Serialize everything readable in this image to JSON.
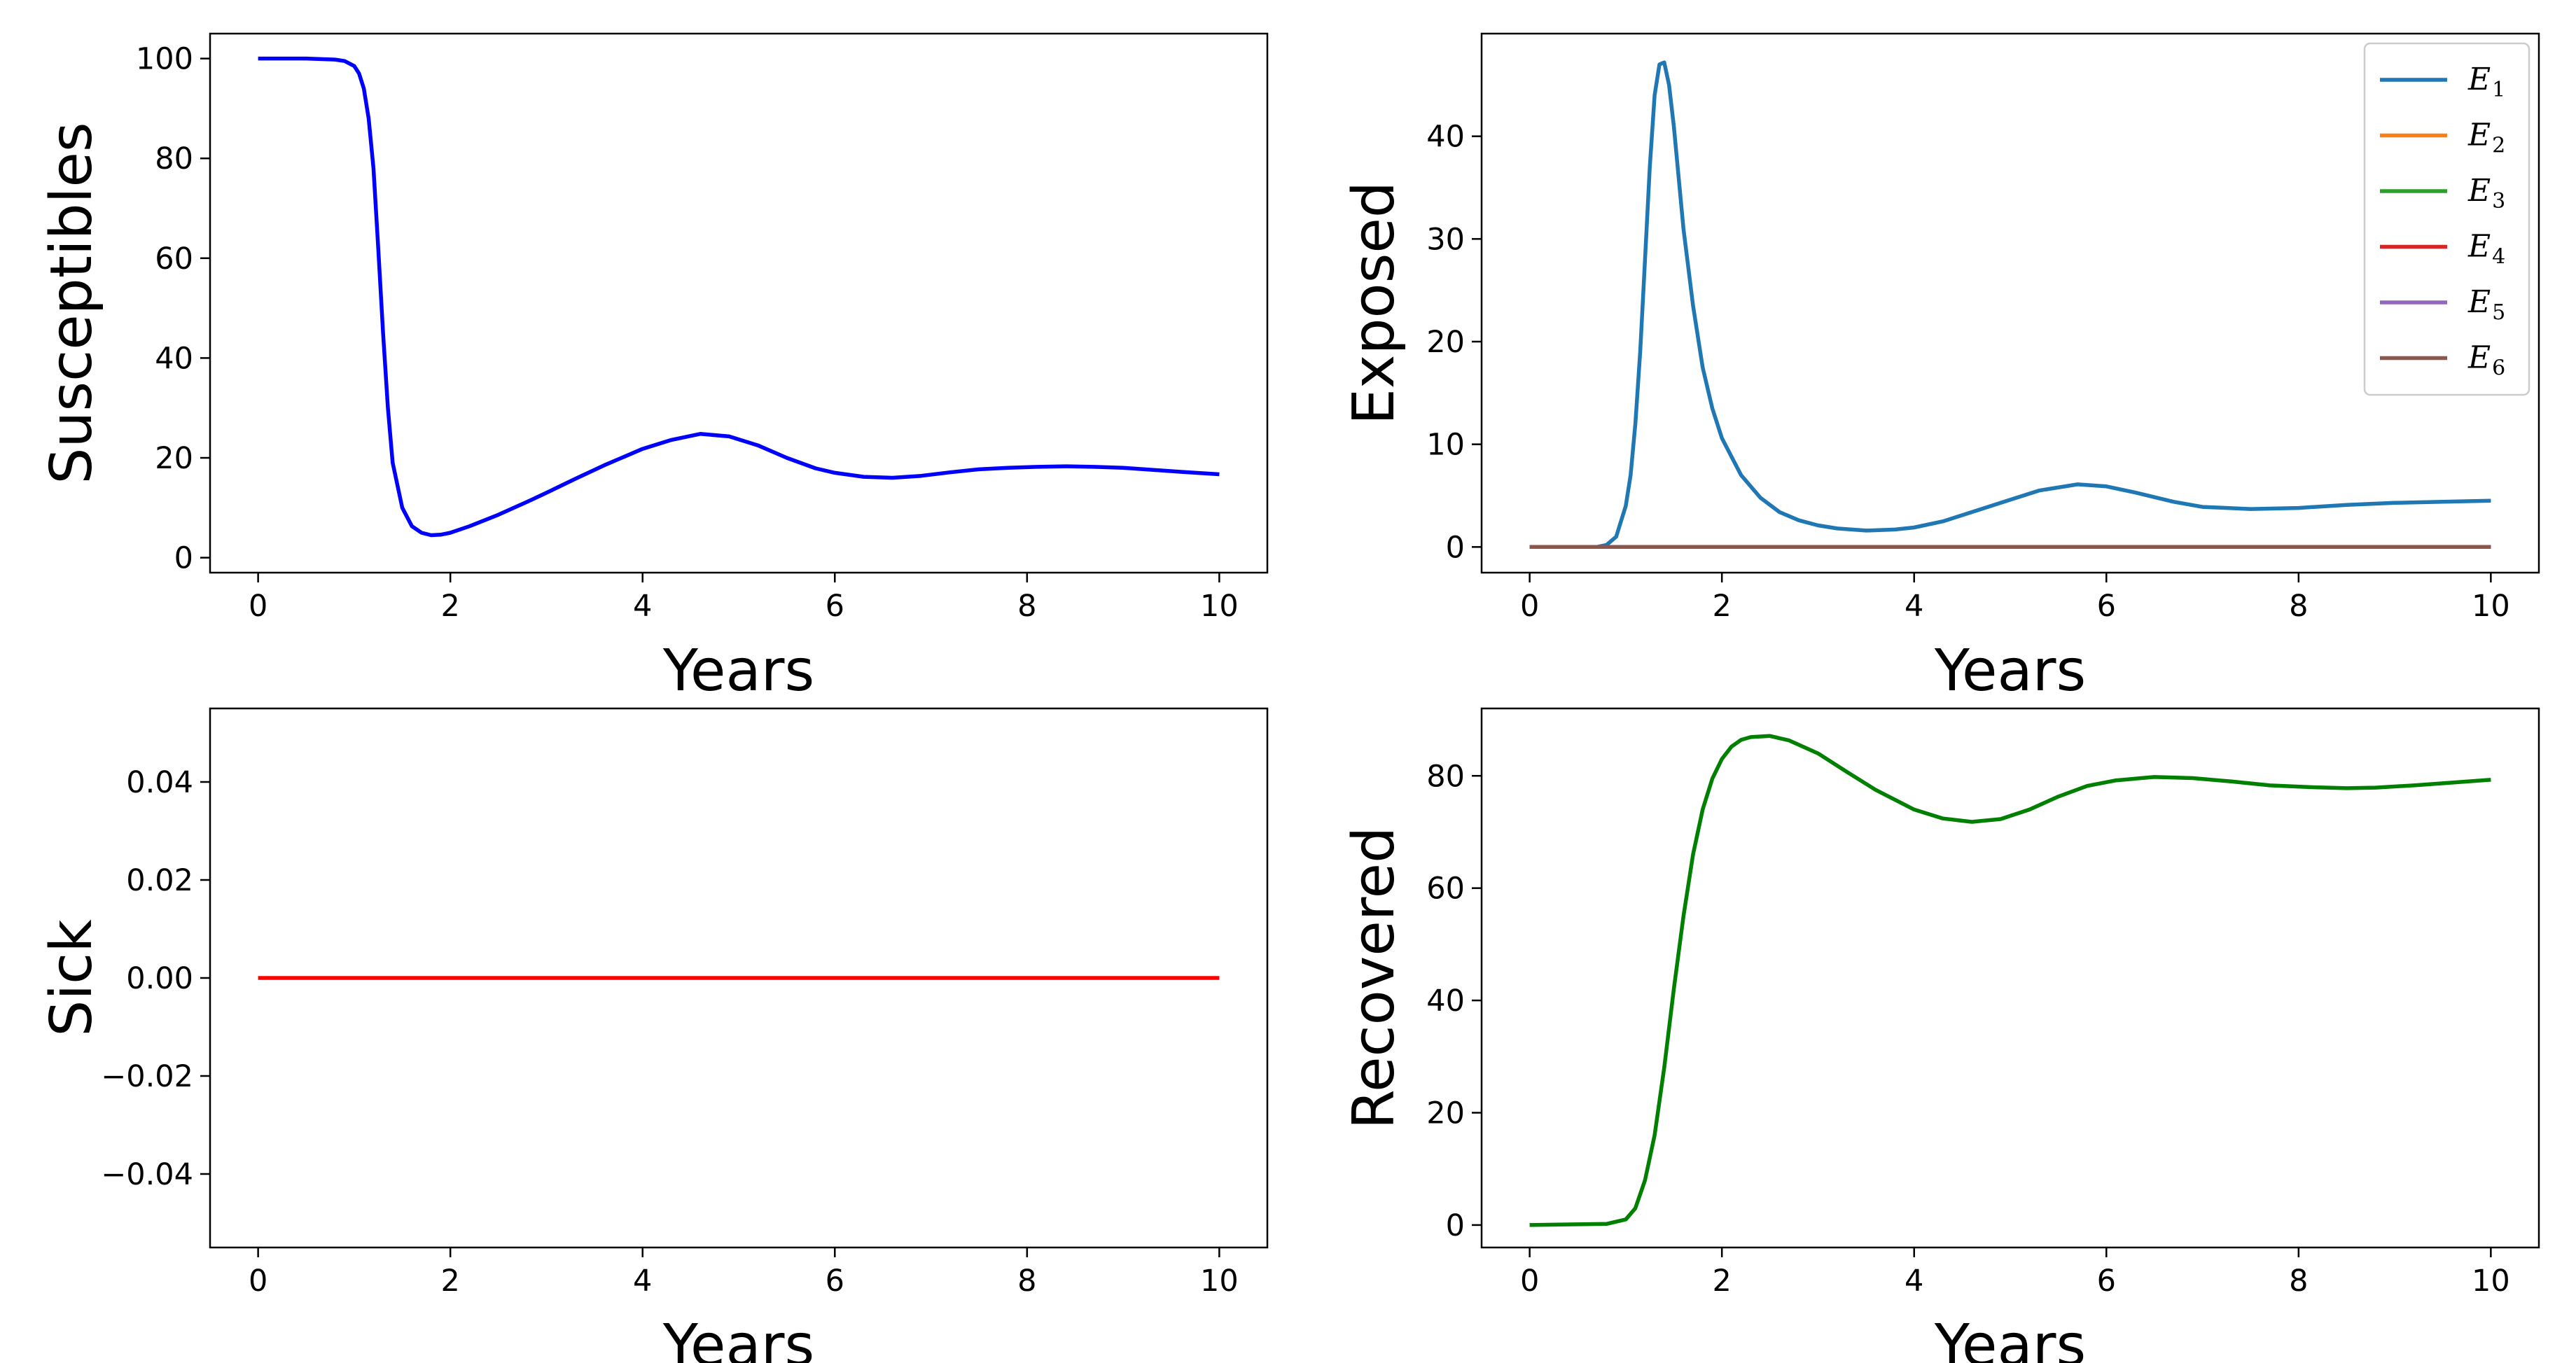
{
  "chart_data": [
    {
      "type": "line",
      "xlabel": "Years",
      "ylabel": "Susceptibles",
      "xlim": [
        -0.5,
        10.5
      ],
      "ylim": [
        -3,
        105
      ],
      "xticks": [
        "0",
        "2",
        "4",
        "6",
        "8",
        "10"
      ],
      "yticks": [
        "0",
        "20",
        "40",
        "60",
        "80",
        "100"
      ],
      "series": [
        {
          "name": "Susceptibles",
          "color": "#0000ff",
          "x": [
            0,
            0.5,
            0.8,
            0.9,
            1.0,
            1.05,
            1.1,
            1.15,
            1.2,
            1.25,
            1.3,
            1.35,
            1.4,
            1.5,
            1.6,
            1.7,
            1.8,
            1.9,
            2.0,
            2.2,
            2.5,
            2.8,
            3.0,
            3.3,
            3.6,
            4.0,
            4.3,
            4.6,
            4.9,
            5.2,
            5.5,
            5.8,
            6.0,
            6.3,
            6.6,
            6.9,
            7.2,
            7.5,
            7.8,
            8.1,
            8.4,
            8.7,
            9.0,
            9.3,
            9.6,
            10.0
          ],
          "y": [
            100,
            100,
            99.8,
            99.5,
            98.5,
            97,
            94,
            88,
            78,
            62,
            45,
            30,
            19,
            10,
            6.3,
            5,
            4.5,
            4.6,
            5,
            6.3,
            8.6,
            11.2,
            13,
            15.8,
            18.5,
            21.8,
            23.6,
            24.8,
            24.3,
            22.5,
            20,
            17.9,
            17,
            16.2,
            16,
            16.4,
            17.1,
            17.7,
            18,
            18.2,
            18.3,
            18.2,
            18,
            17.6,
            17.2,
            16.7
          ]
        }
      ]
    },
    {
      "type": "line",
      "xlabel": "Years",
      "ylabel": "Exposed",
      "xlim": [
        -0.5,
        10.5
      ],
      "ylim": [
        -2.5,
        50
      ],
      "xticks": [
        "0",
        "2",
        "4",
        "6",
        "8",
        "10"
      ],
      "yticks": [
        "0",
        "10",
        "20",
        "30",
        "40"
      ],
      "legend_position": "top-right",
      "series": [
        {
          "name": "E1",
          "color": "#1f77b4",
          "x": [
            0,
            0.7,
            0.8,
            0.9,
            1.0,
            1.05,
            1.1,
            1.15,
            1.2,
            1.25,
            1.3,
            1.35,
            1.4,
            1.45,
            1.5,
            1.55,
            1.6,
            1.7,
            1.8,
            1.9,
            2.0,
            2.2,
            2.4,
            2.6,
            2.8,
            3.0,
            3.2,
            3.5,
            3.8,
            4.0,
            4.3,
            4.6,
            5.0,
            5.3,
            5.7,
            6.0,
            6.3,
            6.7,
            7.0,
            7.5,
            8.0,
            8.5,
            9.0,
            9.5,
            10.0
          ],
          "y": [
            0,
            0,
            0.2,
            1,
            4,
            7,
            12,
            19,
            28,
            37,
            44,
            47,
            47.2,
            45,
            41,
            36,
            31,
            23.5,
            17.5,
            13.5,
            10.6,
            7,
            4.8,
            3.4,
            2.6,
            2.1,
            1.8,
            1.6,
            1.7,
            1.9,
            2.5,
            3.4,
            4.6,
            5.5,
            6.1,
            5.9,
            5.3,
            4.4,
            3.9,
            3.7,
            3.8,
            4.1,
            4.3,
            4.4,
            4.5
          ]
        },
        {
          "name": "E2",
          "color": "#ff7f0e",
          "x": [
            0,
            10
          ],
          "y": [
            0,
            0
          ]
        },
        {
          "name": "E3",
          "color": "#2ca02c",
          "x": [
            0,
            10
          ],
          "y": [
            0,
            0
          ]
        },
        {
          "name": "E4",
          "color": "#d62728",
          "x": [
            0,
            10
          ],
          "y": [
            0,
            0
          ]
        },
        {
          "name": "E5",
          "color": "#9467bd",
          "x": [
            0,
            10
          ],
          "y": [
            0,
            0
          ]
        },
        {
          "name": "E6",
          "color": "#8c564b",
          "x": [
            0,
            10
          ],
          "y": [
            0,
            0
          ]
        }
      ]
    },
    {
      "type": "line",
      "xlabel": "Years",
      "ylabel": "Sick",
      "xlim": [
        -0.5,
        10.5
      ],
      "ylim": [
        -0.055,
        0.055
      ],
      "xticks": [
        "0",
        "2",
        "4",
        "6",
        "8",
        "10"
      ],
      "yticks": [
        "−0.04",
        "−0.02",
        "0.00",
        "0.02",
        "0.04"
      ],
      "series": [
        {
          "name": "Sick",
          "color": "#ff0000",
          "x": [
            0,
            10
          ],
          "y": [
            0,
            0
          ]
        }
      ]
    },
    {
      "type": "line",
      "xlabel": "Years",
      "ylabel": "Recovered",
      "xlim": [
        -0.5,
        10.5
      ],
      "ylim": [
        -4,
        92
      ],
      "xticks": [
        "0",
        "2",
        "4",
        "6",
        "8",
        "10"
      ],
      "yticks": [
        "0",
        "20",
        "40",
        "60",
        "80"
      ],
      "series": [
        {
          "name": "Recovered",
          "color": "#008000",
          "x": [
            0,
            0.8,
            1.0,
            1.1,
            1.2,
            1.3,
            1.4,
            1.5,
            1.6,
            1.7,
            1.8,
            1.9,
            2.0,
            2.1,
            2.2,
            2.3,
            2.5,
            2.7,
            3.0,
            3.3,
            3.6,
            4.0,
            4.3,
            4.6,
            4.9,
            5.2,
            5.5,
            5.8,
            6.1,
            6.5,
            6.9,
            7.3,
            7.7,
            8.1,
            8.5,
            8.8,
            9.2,
            9.6,
            10.0
          ],
          "y": [
            0,
            0.2,
            1,
            3,
            8,
            16,
            28,
            42,
            55,
            66,
            74,
            79.5,
            83,
            85.2,
            86.4,
            86.9,
            87.1,
            86.3,
            84,
            80.7,
            77.5,
            74,
            72.4,
            71.8,
            72.3,
            74,
            76.3,
            78.2,
            79.2,
            79.8,
            79.6,
            79,
            78.3,
            78,
            77.8,
            77.9,
            78.3,
            78.8,
            79.3
          ]
        }
      ]
    }
  ]
}
